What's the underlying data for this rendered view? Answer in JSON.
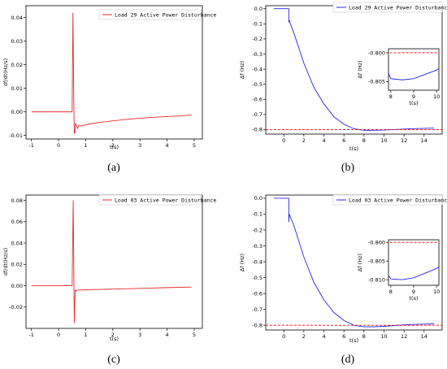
{
  "chart_data": [
    {
      "type": "line",
      "caption": "(a)",
      "xlabel": "t(s)",
      "ylabel": "df/dt(Hz/s)",
      "xlim": [
        -1.2,
        5.3
      ],
      "ylim": [
        -0.0115,
        0.045
      ],
      "xticks": [
        "-1",
        "0",
        "1",
        "2",
        "3",
        "4",
        "5"
      ],
      "yticks": [
        "-0.01",
        "0.00",
        "0.01",
        "0.02",
        "0.03",
        "0.04"
      ],
      "series": [
        {
          "name": "Load 29 Active Power Disturbance",
          "color": "#e8282b",
          "x": [
            -1.0,
            0.0,
            0.5,
            0.53,
            0.56,
            0.58,
            0.6,
            0.62,
            0.65,
            0.7,
            0.75,
            0.8,
            0.9,
            1.0,
            1.2,
            1.5,
            2.0,
            2.5,
            3.0,
            3.5,
            4.0,
            4.5,
            4.9
          ],
          "y": [
            0.0,
            0.0,
            0.0,
            0.042,
            0.005,
            -0.009,
            -0.009,
            -0.005,
            -0.0055,
            -0.007,
            -0.0058,
            -0.006,
            -0.0058,
            -0.0055,
            -0.005,
            -0.0045,
            -0.0038,
            -0.0032,
            -0.0027,
            -0.0023,
            -0.002,
            -0.0017,
            -0.0013
          ]
        }
      ]
    },
    {
      "type": "line",
      "caption": "(b)",
      "xlabel": "t(s)",
      "ylabel": "Δf (Hz)",
      "xlim": [
        -1.8,
        15.8
      ],
      "ylim": [
        -0.83,
        0.02
      ],
      "xticks": [
        "0",
        "2",
        "4",
        "6",
        "8",
        "10",
        "12",
        "14"
      ],
      "yticks": [
        "0.0",
        "-0.1",
        "-0.2",
        "-0.3",
        "-0.4",
        "-0.5",
        "-0.6",
        "-0.7",
        "-0.8"
      ],
      "series": [
        {
          "name": "Load 29 Active Power Disturbance",
          "color": "#2424e8",
          "x": [
            -1.0,
            0.0,
            0.5,
            0.5,
            0.55,
            0.6,
            1.0,
            2.0,
            3.0,
            4.0,
            5.0,
            6.0,
            7.0,
            8.0,
            8.5,
            9.0,
            10.0,
            11.0,
            12.0,
            13.0,
            14.0,
            15.0
          ],
          "y": [
            0.0,
            0.0,
            0.0,
            -0.09,
            -0.075,
            -0.09,
            -0.16,
            -0.36,
            -0.52,
            -0.63,
            -0.715,
            -0.765,
            -0.795,
            -0.8045,
            -0.8047,
            -0.8045,
            -0.803,
            -0.8,
            -0.797,
            -0.794,
            -0.792,
            -0.79
          ]
        },
        {
          "name": "",
          "color": "#ff0000",
          "dashed": true,
          "x": [
            -1.8,
            15.8
          ],
          "y": [
            -0.8,
            -0.8
          ]
        }
      ],
      "inset": {
        "xlabel": "t(s)",
        "ylabel": "Δf (Hz)",
        "xlim": [
          7.9,
          10.1
        ],
        "ylim": [
          -0.8065,
          -0.7993
        ],
        "xticks": [
          "8",
          "9",
          "10"
        ],
        "yticks": [
          "-0.800",
          "-0.805"
        ]
      }
    },
    {
      "type": "line",
      "caption": "(c)",
      "xlabel": "t(s)",
      "ylabel": "df/dt(Hz/s)",
      "xlim": [
        -1.2,
        5.3
      ],
      "ylim": [
        -0.04,
        0.085
      ],
      "xticks": [
        "-1",
        "0",
        "1",
        "2",
        "3",
        "4",
        "5"
      ],
      "yticks": [
        "0.08",
        "0.06",
        "0.04",
        "0.02",
        "0.00",
        "-0.02"
      ],
      "series": [
        {
          "name": "Load 03 Active Power Disturbance",
          "color": "#e8282b",
          "x": [
            -1.0,
            0.0,
            0.5,
            0.52,
            0.54,
            0.56,
            0.58,
            0.6,
            0.62,
            0.65,
            0.7,
            0.8,
            1.0,
            2.0,
            3.0,
            4.0,
            4.9
          ],
          "y": [
            0.0,
            0.0,
            0.0,
            0.04,
            0.08,
            0.02,
            -0.035,
            -0.013,
            -0.004,
            -0.005,
            -0.004,
            -0.004,
            -0.0038,
            -0.0032,
            -0.0025,
            -0.0018,
            -0.0013
          ]
        }
      ]
    },
    {
      "type": "line",
      "caption": "(d)",
      "xlabel": "t(s)",
      "ylabel": "Δf (Hz)",
      "xlim": [
        -1.8,
        15.8
      ],
      "ylim": [
        -0.83,
        0.02
      ],
      "xticks": [
        "0",
        "2",
        "4",
        "6",
        "8",
        "10",
        "12",
        "14"
      ],
      "yticks": [
        "0.0",
        "-0.1",
        "-0.2",
        "-0.3",
        "-0.4",
        "-0.5",
        "-0.6",
        "-0.7",
        "-0.8"
      ],
      "series": [
        {
          "name": "Load 03 Active Power Disturbance",
          "color": "#2424e8",
          "x": [
            -1.0,
            0.0,
            0.5,
            0.5,
            0.55,
            0.6,
            1.0,
            2.0,
            3.0,
            4.0,
            5.0,
            6.0,
            7.0,
            8.0,
            8.5,
            9.0,
            10.0,
            11.0,
            12.0,
            13.0,
            14.0,
            15.0
          ],
          "y": [
            0.0,
            0.0,
            0.0,
            -0.15,
            -0.1,
            -0.11,
            -0.17,
            -0.37,
            -0.53,
            -0.64,
            -0.72,
            -0.77,
            -0.8,
            -0.8098,
            -0.81,
            -0.8095,
            -0.807,
            -0.802,
            -0.798,
            -0.795,
            -0.793,
            -0.791
          ]
        },
        {
          "name": "",
          "color": "#ff0000",
          "dashed": true,
          "x": [
            -1.8,
            15.8
          ],
          "y": [
            -0.8,
            -0.8
          ]
        }
      ],
      "inset": {
        "xlabel": "t(s)",
        "ylabel": "Δf (Hz)",
        "xlim": [
          7.9,
          10.1
        ],
        "ylim": [
          -0.8115,
          -0.7993
        ],
        "xticks": [
          "8",
          "9",
          "10"
        ],
        "yticks": [
          "-0.800",
          "-0.805",
          "-0.810"
        ]
      }
    }
  ]
}
